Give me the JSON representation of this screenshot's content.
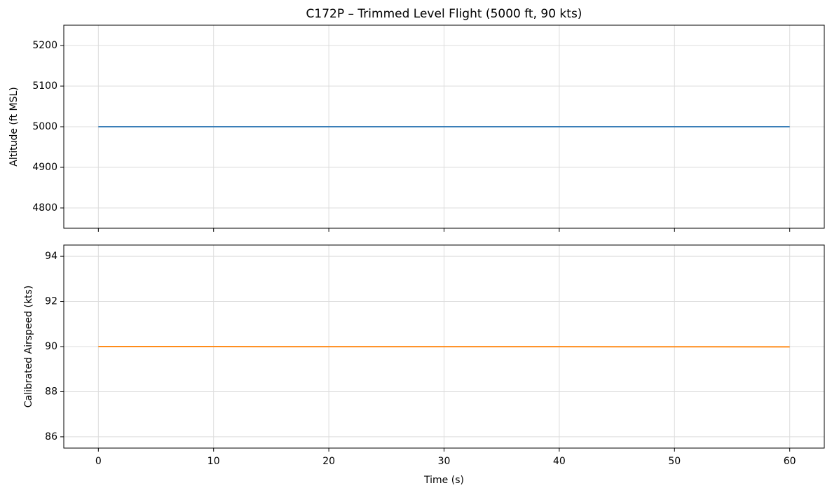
{
  "chart_data": [
    {
      "type": "line",
      "title": "C172P – Trimmed Level Flight  (5000 ft, 90 kts)",
      "ylabel": "Altitude (ft MSL)",
      "x": [
        0,
        10,
        20,
        30,
        40,
        50,
        60
      ],
      "values": [
        5000,
        5000,
        5000,
        5000,
        5000,
        5000,
        5000
      ],
      "color": "#3b7fb8",
      "xlim": [
        -3,
        63
      ],
      "xticks": [
        0,
        10,
        20,
        30,
        40,
        50,
        60
      ],
      "ylim": [
        4750,
        5250
      ],
      "yticks": [
        4800,
        4900,
        5000,
        5100,
        5200
      ],
      "grid": true
    },
    {
      "type": "line",
      "xlabel": "Time (s)",
      "ylabel": "Calibrated Airspeed (kts)",
      "x": [
        0,
        10,
        20,
        30,
        40,
        50,
        60
      ],
      "values": [
        90.0,
        89.998,
        89.997,
        89.996,
        89.995,
        89.993,
        89.99
      ],
      "color": "#ff8c1a",
      "xlim": [
        -3,
        63
      ],
      "xticks": [
        0,
        10,
        20,
        30,
        40,
        50,
        60
      ],
      "ylim": [
        85.5,
        94.5
      ],
      "yticks": [
        86,
        88,
        90,
        92,
        94
      ],
      "grid": true
    }
  ]
}
